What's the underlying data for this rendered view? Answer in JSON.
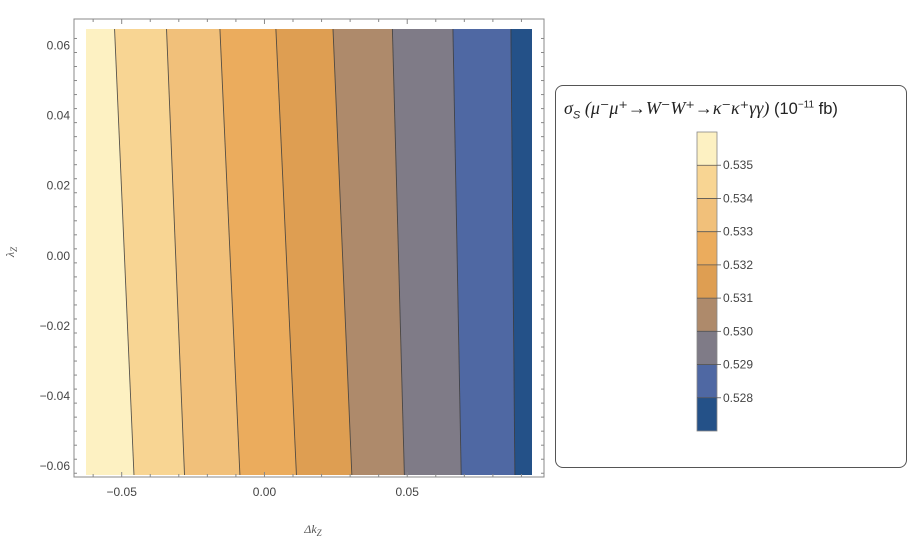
{
  "chart_data": {
    "type": "contour",
    "xlabel": "Δk_Z",
    "ylabel": "λ_Z",
    "xlim": [
      -0.0625,
      0.0937
    ],
    "ylim": [
      -0.0625,
      0.0647
    ],
    "x_ticks": [
      -0.05,
      0.0,
      0.05
    ],
    "x_tick_labels": [
      "−0.05",
      "0.00",
      "0.05"
    ],
    "y_ticks": [
      0.06,
      0.04,
      0.02,
      0.0,
      -0.02,
      -0.04,
      -0.06
    ],
    "y_tick_labels": [
      "0.06",
      "0.04",
      "0.02",
      "0.00",
      "−0.02",
      "−0.04",
      "−0.06"
    ],
    "contour_lines": [
      {
        "x_top": -0.0525,
        "x_bottom": -0.0457
      },
      {
        "x_top": -0.0343,
        "x_bottom": -0.028
      },
      {
        "x_top": -0.0156,
        "x_bottom": -0.0086
      },
      {
        "x_top": 0.004,
        "x_bottom": 0.0112
      },
      {
        "x_top": 0.024,
        "x_bottom": 0.0306
      },
      {
        "x_top": 0.0448,
        "x_bottom": 0.049
      },
      {
        "x_top": 0.066,
        "x_bottom": 0.0689
      },
      {
        "x_top": 0.0863,
        "x_bottom": 0.0877
      }
    ],
    "band_colors": [
      "#fdf1c2",
      "#f8d593",
      "#f1c07a",
      "#ebac5d",
      "#de9e52",
      "#ae8a6b",
      "#7f7b87",
      "#4f68a3",
      "#245188"
    ],
    "legend": {
      "title_symbol": "σ",
      "title_sub": "S",
      "title_process": "(μ⁻μ⁺→W⁻W⁺→κ⁻κ⁺γγ)",
      "title_units_prefix": "(10",
      "title_units_exp": "−11",
      "title_units_suffix": " fb)",
      "levels": [
        "0.535",
        "0.534",
        "0.533",
        "0.532",
        "0.531",
        "0.530",
        "0.529",
        "0.528"
      ],
      "colors": [
        "#fdf1c2",
        "#f8d593",
        "#f1c07a",
        "#ebac5d",
        "#de9e52",
        "#ae8a6b",
        "#7f7b87",
        "#4f68a3",
        "#245188"
      ]
    }
  }
}
